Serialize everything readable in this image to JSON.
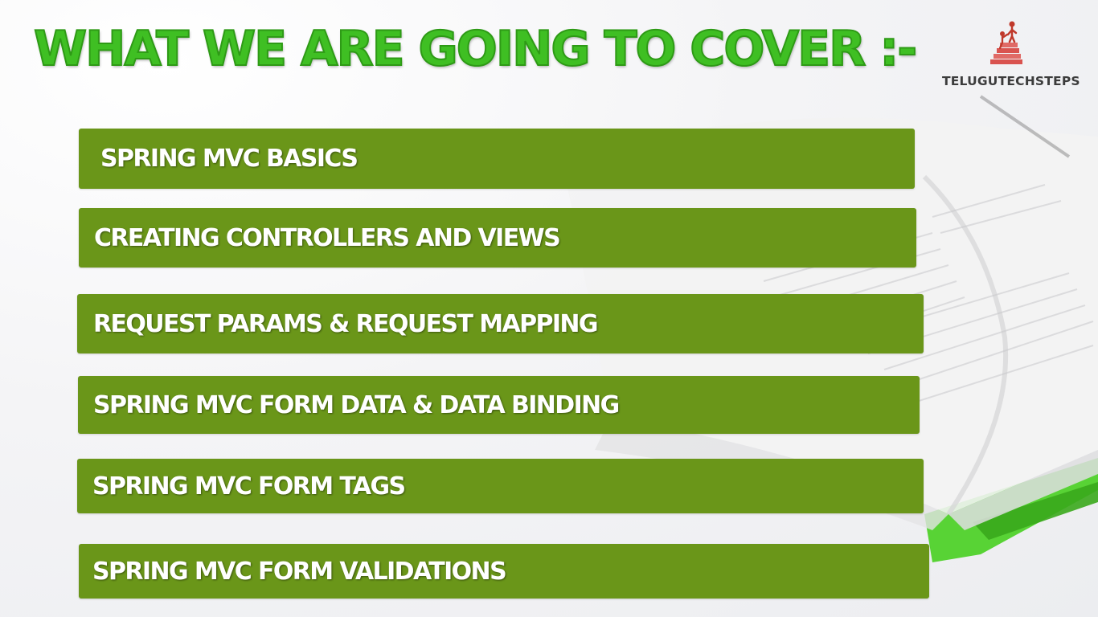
{
  "title": "WHAT WE ARE GOING TO COVER :-",
  "logo": {
    "text": "TELUGUTECHSTEPS",
    "icon": "people-on-steps-icon"
  },
  "topics": [
    {
      "label": "SPRING MVC BASICS"
    },
    {
      "label": "CREATING CONTROLLERS AND VIEWS"
    },
    {
      "label": "REQUEST PARAMS & REQUEST MAPPING"
    },
    {
      "label": "SPRING MVC FORM DATA & DATA BINDING"
    },
    {
      "label": "SPRING MVC FORM TAGS"
    },
    {
      "label": "SPRING MVC FORM VALIDATIONS"
    }
  ],
  "colors": {
    "title": "#3fbf23",
    "bar": "#6a9619",
    "bar_text": "#ffffff",
    "logo_text": "#3c3c3c",
    "logo_icon": "#d9534f",
    "book_cover": "#4fd12a"
  }
}
